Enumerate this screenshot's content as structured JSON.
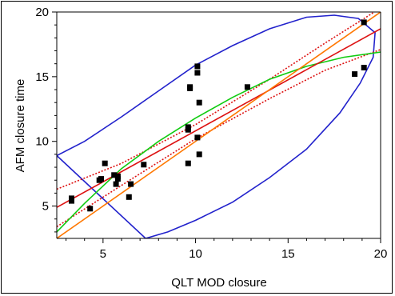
{
  "chart_data": {
    "type": "scatter",
    "xlabel": "QLT MOD closure",
    "ylabel": "AFM closure time",
    "xlim": [
      2.5,
      20
    ],
    "ylim": [
      2.5,
      20
    ],
    "x_ticks": [
      5,
      10,
      15,
      20
    ],
    "y_ticks": [
      5,
      10,
      15,
      20
    ],
    "grid": false,
    "colors": {
      "points": "#000000",
      "regression_line": "#dd1111",
      "confidence_band": "#dd1111",
      "identity_line": "#ff7700",
      "smooth_fit": "#11cc11",
      "density_ellipse": "#2222cc"
    },
    "points": [
      {
        "x": 3.3,
        "y": 5.4
      },
      {
        "x": 3.3,
        "y": 5.6
      },
      {
        "x": 4.3,
        "y": 4.8
      },
      {
        "x": 4.8,
        "y": 7.0
      },
      {
        "x": 4.9,
        "y": 7.1
      },
      {
        "x": 5.1,
        "y": 8.3
      },
      {
        "x": 5.6,
        "y": 7.4
      },
      {
        "x": 5.7,
        "y": 6.7
      },
      {
        "x": 5.8,
        "y": 7.1
      },
      {
        "x": 5.8,
        "y": 7.3
      },
      {
        "x": 6.4,
        "y": 5.7
      },
      {
        "x": 6.5,
        "y": 6.7
      },
      {
        "x": 7.2,
        "y": 8.2
      },
      {
        "x": 9.6,
        "y": 10.9
      },
      {
        "x": 9.6,
        "y": 11.1
      },
      {
        "x": 9.6,
        "y": 8.3
      },
      {
        "x": 9.7,
        "y": 14.1
      },
      {
        "x": 9.7,
        "y": 14.2
      },
      {
        "x": 10.1,
        "y": 15.8
      },
      {
        "x": 10.1,
        "y": 15.3
      },
      {
        "x": 10.1,
        "y": 10.3
      },
      {
        "x": 10.2,
        "y": 13.0
      },
      {
        "x": 10.2,
        "y": 9.0
      },
      {
        "x": 12.8,
        "y": 14.2
      },
      {
        "x": 18.6,
        "y": 15.2
      },
      {
        "x": 19.1,
        "y": 15.7
      },
      {
        "x": 19.1,
        "y": 19.2
      }
    ],
    "regression_line": [
      [
        2.5,
        4.9
      ],
      [
        20,
        18.7
      ]
    ],
    "confidence_band_upper": [
      [
        2.5,
        6.3
      ],
      [
        6,
        8.3
      ],
      [
        10,
        11.3
      ],
      [
        14,
        14.8
      ],
      [
        17,
        17.6
      ],
      [
        20,
        20.3
      ]
    ],
    "confidence_band_lower": [
      [
        2.5,
        3.4
      ],
      [
        6,
        6.6
      ],
      [
        10,
        10.2
      ],
      [
        14,
        13.3
      ],
      [
        17,
        15.5
      ],
      [
        20,
        17.1
      ]
    ],
    "identity_line": [
      [
        2.5,
        2.5
      ],
      [
        20,
        20
      ]
    ],
    "smooth_fit": [
      [
        2.5,
        3.0
      ],
      [
        4,
        5.2
      ],
      [
        6,
        7.9
      ],
      [
        8,
        10.0
      ],
      [
        10,
        11.8
      ],
      [
        12,
        13.4
      ],
      [
        14,
        14.8
      ],
      [
        16,
        15.8
      ],
      [
        18,
        16.5
      ],
      [
        20,
        16.9
      ]
    ],
    "density_ellipse": [
      [
        2.5,
        8.9
      ],
      [
        4,
        10.0
      ],
      [
        6,
        11.9
      ],
      [
        8,
        13.9
      ],
      [
        10,
        15.9
      ],
      [
        12,
        17.4
      ],
      [
        14,
        18.7
      ],
      [
        16,
        19.6
      ],
      [
        17.5,
        19.75
      ],
      [
        18.8,
        19.5
      ],
      [
        19.7,
        18.4
      ],
      [
        19.6,
        16.5
      ],
      [
        18.9,
        14.5
      ],
      [
        17.8,
        12.2
      ],
      [
        16,
        9.4
      ],
      [
        14,
        7.2
      ],
      [
        12,
        5.3
      ],
      [
        10,
        3.9
      ],
      [
        8.5,
        3.0
      ],
      [
        7.3,
        2.5
      ]
    ]
  }
}
